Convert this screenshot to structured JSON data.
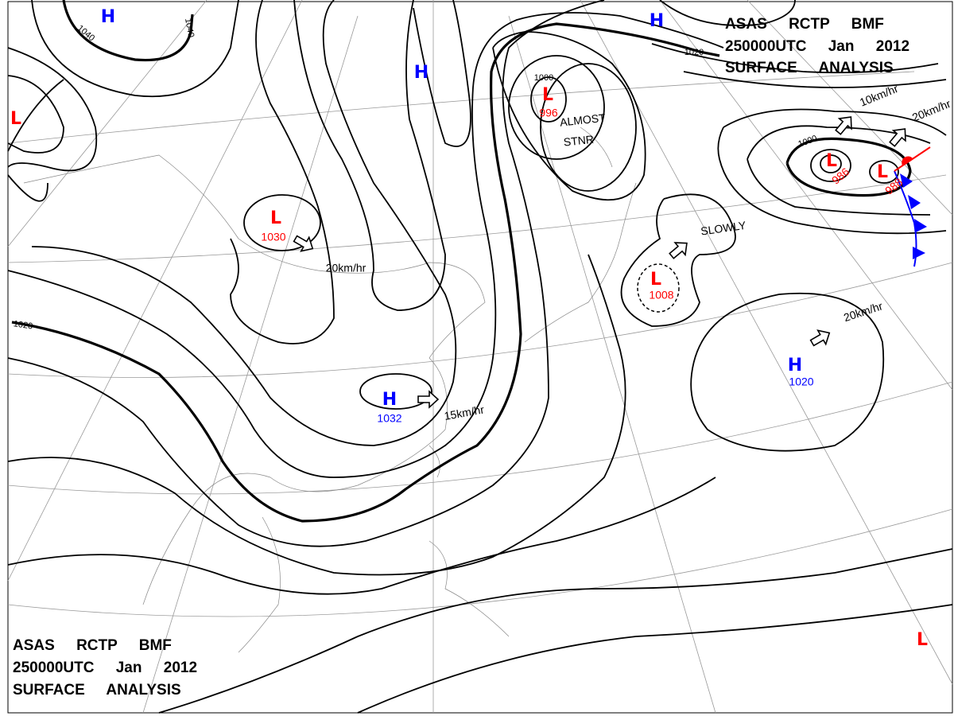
{
  "header_top": [
    "ASAS RCTP BMF",
    "250000UTC Jan 2012",
    "SURFACE ANALYSIS"
  ],
  "header_bottom": [
    "ASAS RCTP BMF",
    "250000UTC Jan 2012",
    "SURFACE ANALYSIS"
  ],
  "systems": [
    {
      "symbol": "H"
    },
    {
      "symbol": "H"
    },
    {
      "symbol": "H"
    },
    {
      "symbol": "L"
    },
    {
      "symbol": "L",
      "pressure": 1030
    },
    {
      "symbol": "L",
      "pressure": 996
    },
    {
      "symbol": "H",
      "pressure": 1032
    },
    {
      "symbol": "L",
      "pressure": 1008
    },
    {
      "symbol": "H",
      "pressure": 1020
    },
    {
      "symbol": "L",
      "pressure": 986
    },
    {
      "symbol": "L",
      "pressure": 988
    },
    {
      "symbol": "L"
    }
  ],
  "annotations": [
    "20km/hr",
    "15km/hr",
    "20km/hr",
    "SLOWLY",
    "ALMOST",
    "STNR",
    "10km/hr",
    "20km/hr"
  ],
  "isobar_labels": [
    "1040",
    "1040",
    "1020",
    "1000",
    "1000",
    "1020"
  ]
}
